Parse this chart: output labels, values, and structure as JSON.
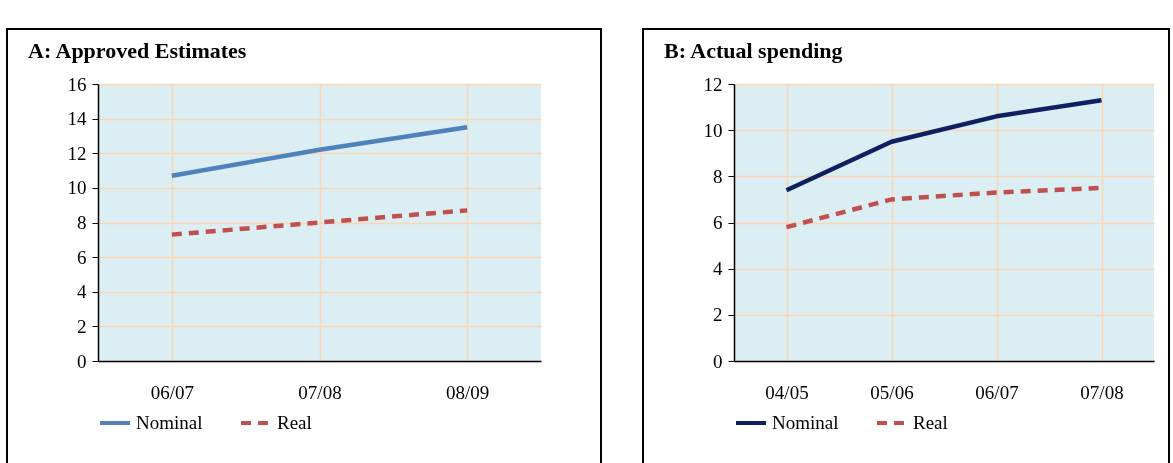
{
  "chart_data": [
    {
      "type": "line",
      "title": "A: Approved Estimates",
      "categories": [
        "06/07",
        "07/08",
        "08/09"
      ],
      "series": [
        {
          "name": "Nominal",
          "color": "#4f81bd",
          "line_style": "solid",
          "values": [
            10.7,
            12.2,
            13.5
          ]
        },
        {
          "name": "Real",
          "color": "#c0504d",
          "line_style": "dashed",
          "values": [
            7.3,
            8.0,
            8.7
          ]
        }
      ],
      "ylim": [
        0,
        16
      ],
      "yticks": [
        0,
        2,
        4,
        6,
        8,
        10,
        12,
        14,
        16
      ],
      "grid": true,
      "legend": "bottom"
    },
    {
      "type": "line",
      "title": "B: Actual spending",
      "categories": [
        "04/05",
        "05/06",
        "06/07",
        "07/08"
      ],
      "series": [
        {
          "name": "Nominal",
          "color": "#0f2060",
          "line_style": "solid",
          "values": [
            7.4,
            9.5,
            10.6,
            11.3
          ]
        },
        {
          "name": "Real",
          "color": "#c0504d",
          "line_style": "dashed",
          "values": [
            5.8,
            7.0,
            7.3,
            7.5
          ]
        }
      ],
      "ylim": [
        0,
        12
      ],
      "yticks": [
        0,
        2,
        4,
        6,
        8,
        10,
        12
      ],
      "grid": true,
      "legend": "bottom"
    }
  ]
}
